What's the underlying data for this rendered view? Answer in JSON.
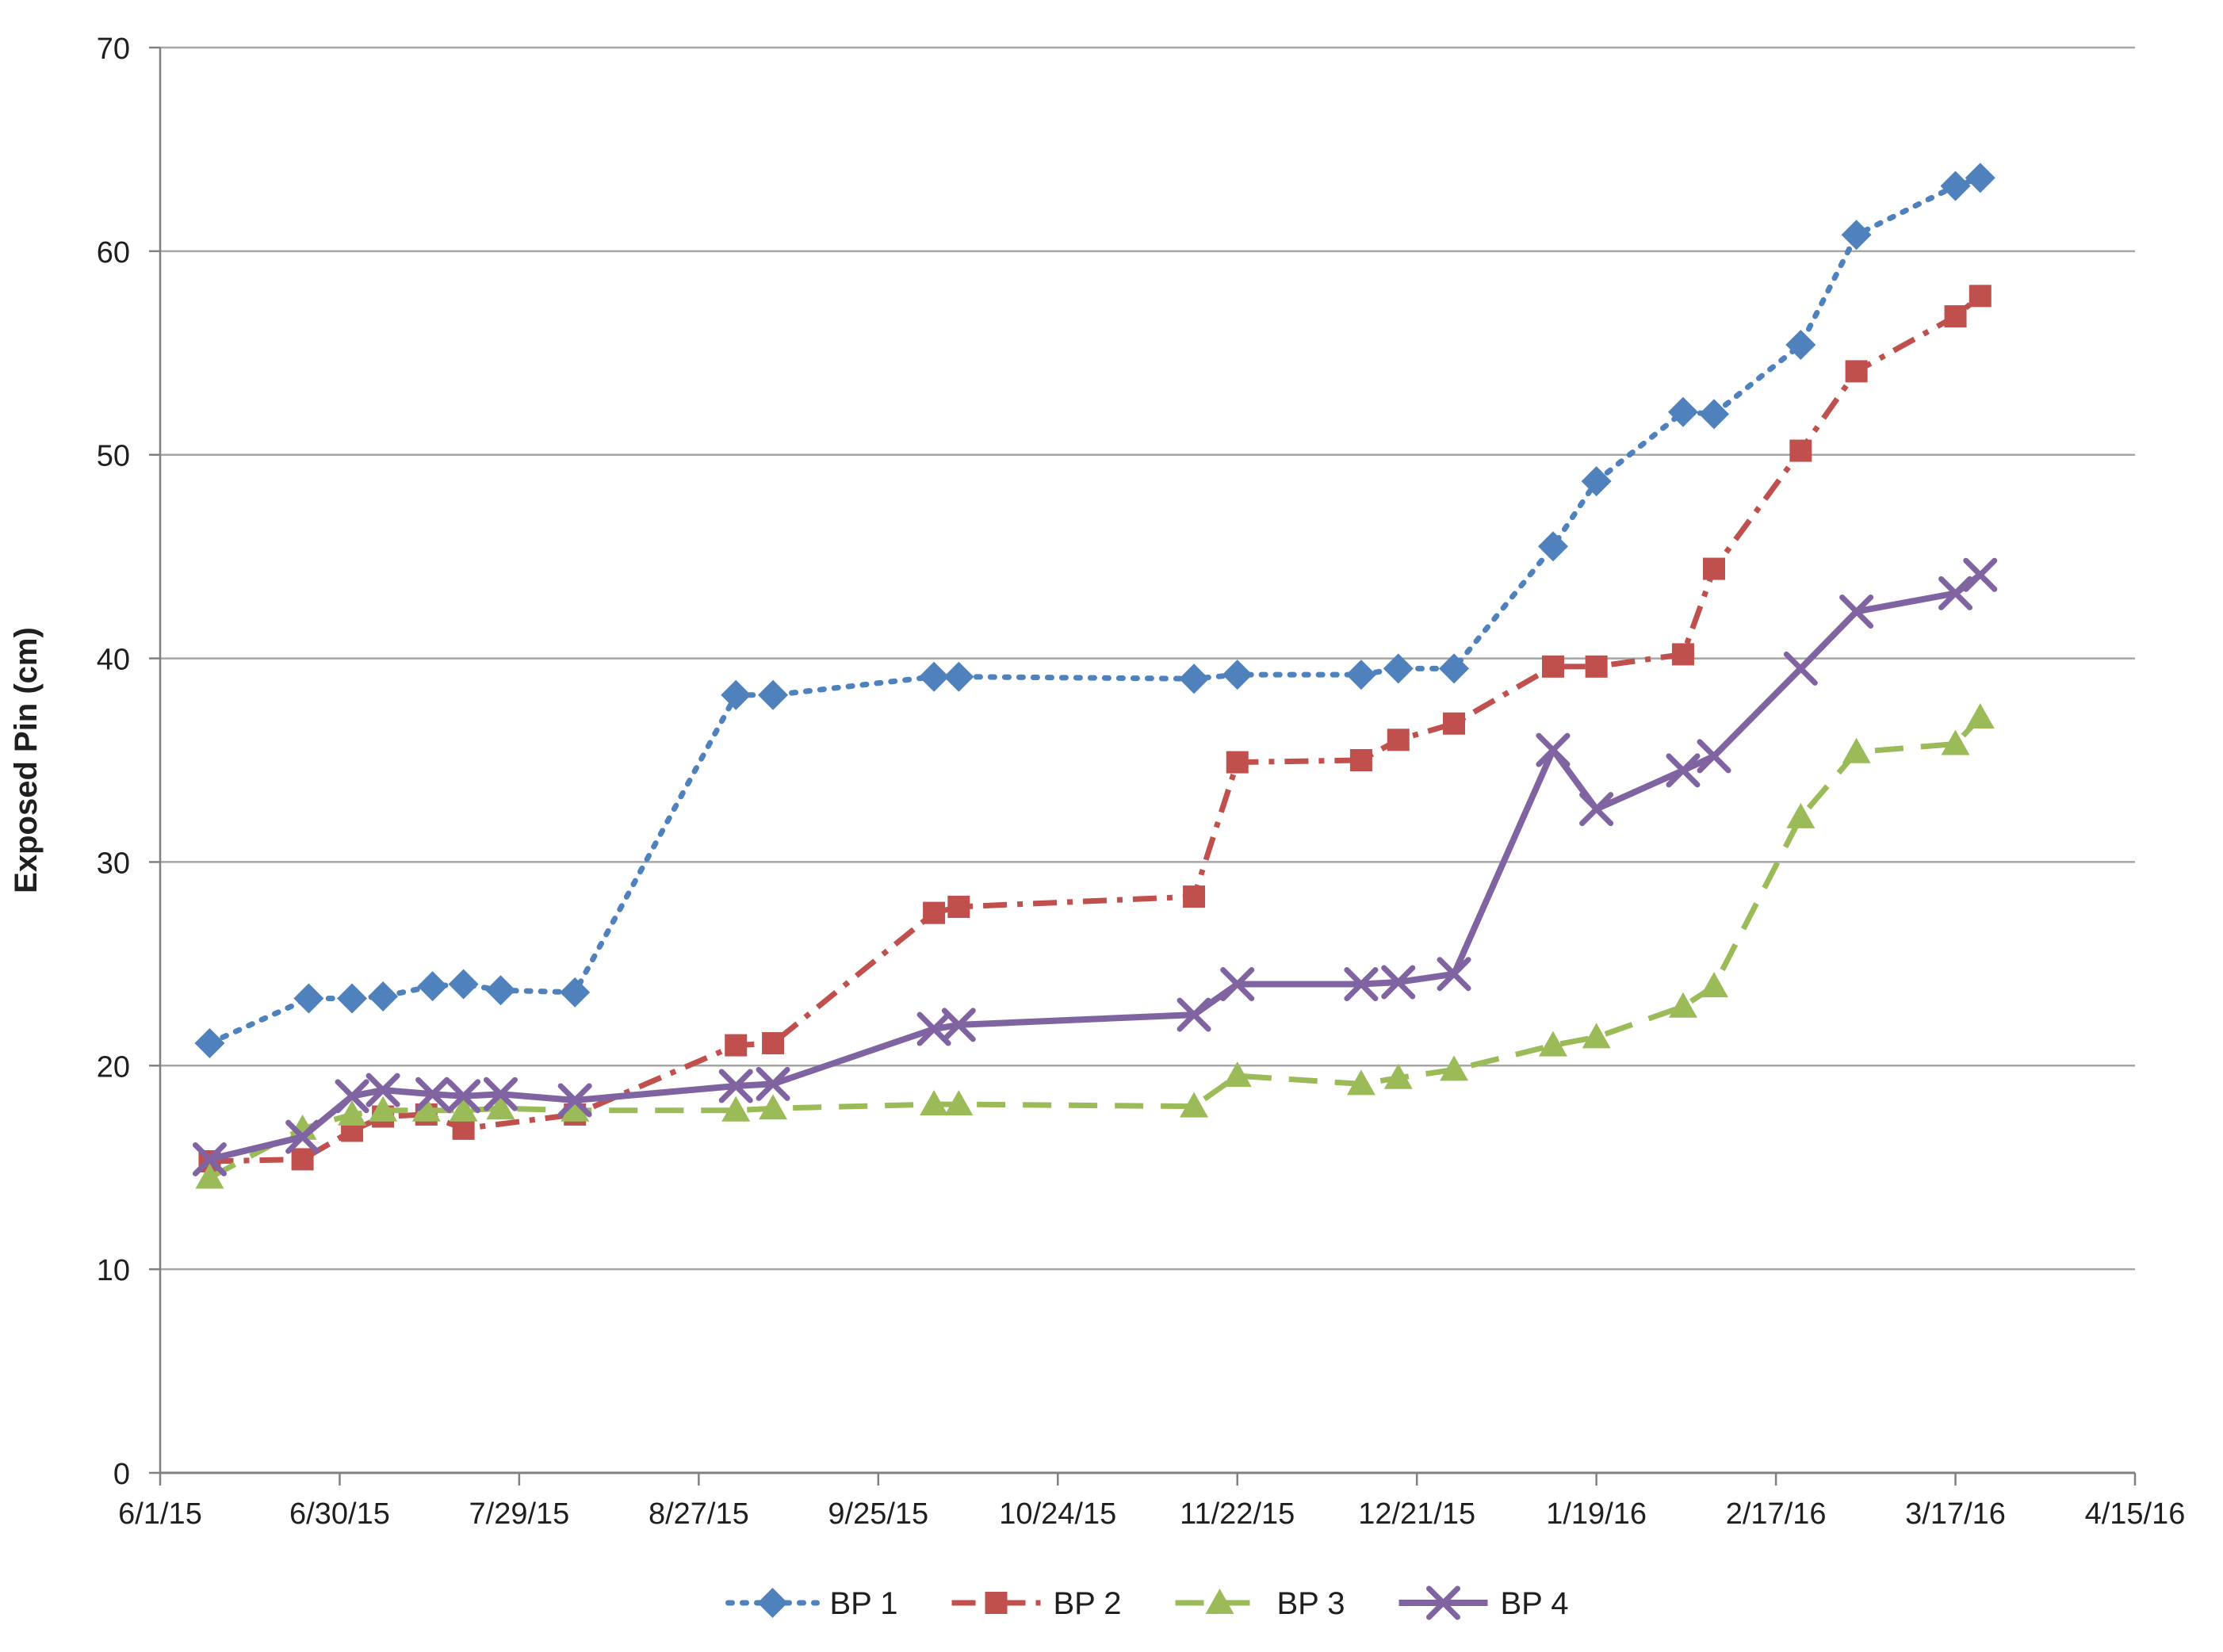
{
  "chart_data": {
    "type": "line",
    "title": "",
    "xlabel": "",
    "ylabel": "Exposed Pin (cm)",
    "ylim": [
      0,
      70
    ],
    "ytick_step": 10,
    "yticks": [
      0,
      10,
      20,
      30,
      40,
      50,
      60,
      70
    ],
    "x_axis_note": "date axis, ticks every 29 days from 6/1/15 to 4/15/16",
    "x_day_range": [
      0,
      319
    ],
    "xticks": [
      {
        "day": 0,
        "label": "6/1/15"
      },
      {
        "day": 29,
        "label": "6/30/15"
      },
      {
        "day": 58,
        "label": "7/29/15"
      },
      {
        "day": 87,
        "label": "8/27/15"
      },
      {
        "day": 116,
        "label": "9/25/15"
      },
      {
        "day": 145,
        "label": "10/24/15"
      },
      {
        "day": 174,
        "label": "11/22/15"
      },
      {
        "day": 203,
        "label": "12/21/15"
      },
      {
        "day": 232,
        "label": "1/19/16"
      },
      {
        "day": 261,
        "label": "2/17/16"
      },
      {
        "day": 290,
        "label": "3/17/16"
      },
      {
        "day": 319,
        "label": "4/15/16"
      }
    ],
    "grid": "horizontal",
    "legend_position": "bottom-center",
    "colors": {
      "gridline": "#a6a6a6",
      "axis": "#808080",
      "text": "#1f1f1f"
    },
    "series": [
      {
        "name": "BP 1",
        "color": "#4F81BD",
        "marker": "diamond",
        "line_style": "dotted",
        "points": [
          [
            8,
            21.1
          ],
          [
            24,
            23.3
          ],
          [
            31,
            23.3
          ],
          [
            36,
            23.4
          ],
          [
            44,
            23.9
          ],
          [
            49,
            24.0
          ],
          [
            55,
            23.7
          ],
          [
            67,
            23.6
          ],
          [
            93,
            38.2
          ],
          [
            99,
            38.2
          ],
          [
            125,
            39.1
          ],
          [
            129,
            39.1
          ],
          [
            167,
            39.0
          ],
          [
            174,
            39.2
          ],
          [
            194,
            39.2
          ],
          [
            200,
            39.5
          ],
          [
            209,
            39.5
          ],
          [
            225,
            45.5
          ],
          [
            232,
            48.7
          ],
          [
            246,
            52.1
          ],
          [
            251,
            52.0
          ],
          [
            265,
            55.4
          ],
          [
            274,
            60.8
          ],
          [
            290,
            63.2
          ],
          [
            294,
            63.6
          ]
        ]
      },
      {
        "name": "BP 2",
        "color": "#C0504D",
        "marker": "square",
        "line_style": "dash-dot",
        "points": [
          [
            8,
            15.3
          ],
          [
            23,
            15.4
          ],
          [
            31,
            16.8
          ],
          [
            36,
            17.5
          ],
          [
            43,
            17.6
          ],
          [
            49,
            16.9
          ],
          [
            67,
            17.6
          ],
          [
            93,
            21.0
          ],
          [
            99,
            21.1
          ],
          [
            125,
            27.5
          ],
          [
            129,
            27.8
          ],
          [
            167,
            28.3
          ],
          [
            174,
            34.9
          ],
          [
            194,
            35.0
          ],
          [
            200,
            36.0
          ],
          [
            209,
            36.8
          ],
          [
            225,
            39.6
          ],
          [
            232,
            39.6
          ],
          [
            246,
            40.2
          ],
          [
            251,
            44.4
          ],
          [
            265,
            50.2
          ],
          [
            274,
            54.1
          ],
          [
            290,
            56.8
          ],
          [
            294,
            57.8
          ]
        ]
      },
      {
        "name": "BP 3",
        "color": "#9BBB59",
        "marker": "triangle",
        "line_style": "dashed",
        "points": [
          [
            8,
            14.5
          ],
          [
            23,
            16.9
          ],
          [
            31,
            17.6
          ],
          [
            36,
            17.8
          ],
          [
            43,
            17.8
          ],
          [
            49,
            17.8
          ],
          [
            55,
            17.9
          ],
          [
            67,
            17.8
          ],
          [
            93,
            17.8
          ],
          [
            99,
            17.9
          ],
          [
            125,
            18.1
          ],
          [
            129,
            18.1
          ],
          [
            167,
            18.0
          ],
          [
            174,
            19.5
          ],
          [
            194,
            19.1
          ],
          [
            200,
            19.4
          ],
          [
            209,
            19.8
          ],
          [
            225,
            21.0
          ],
          [
            232,
            21.4
          ],
          [
            246,
            22.9
          ],
          [
            251,
            23.9
          ],
          [
            265,
            32.2
          ],
          [
            274,
            35.4
          ],
          [
            290,
            35.8
          ],
          [
            294,
            37.1
          ]
        ]
      },
      {
        "name": "BP 4",
        "color": "#8064A2",
        "marker": "x",
        "line_style": "solid",
        "points": [
          [
            8,
            15.4
          ],
          [
            23,
            16.5
          ],
          [
            31,
            18.5
          ],
          [
            36,
            18.8
          ],
          [
            44,
            18.6
          ],
          [
            49,
            18.5
          ],
          [
            55,
            18.6
          ],
          [
            67,
            18.3
          ],
          [
            93,
            19.0
          ],
          [
            99,
            19.1
          ],
          [
            125,
            21.8
          ],
          [
            129,
            22.0
          ],
          [
            167,
            22.5
          ],
          [
            174,
            24.0
          ],
          [
            194,
            24.0
          ],
          [
            200,
            24.1
          ],
          [
            209,
            24.5
          ],
          [
            225,
            35.5
          ],
          [
            232,
            32.6
          ],
          [
            246,
            34.5
          ],
          [
            251,
            35.2
          ],
          [
            265,
            39.5
          ],
          [
            274,
            42.3
          ],
          [
            290,
            43.2
          ],
          [
            294,
            44.1
          ]
        ]
      }
    ]
  },
  "legend": {
    "items": [
      "BP 1",
      "BP 2",
      "BP 3",
      "BP 4"
    ]
  }
}
